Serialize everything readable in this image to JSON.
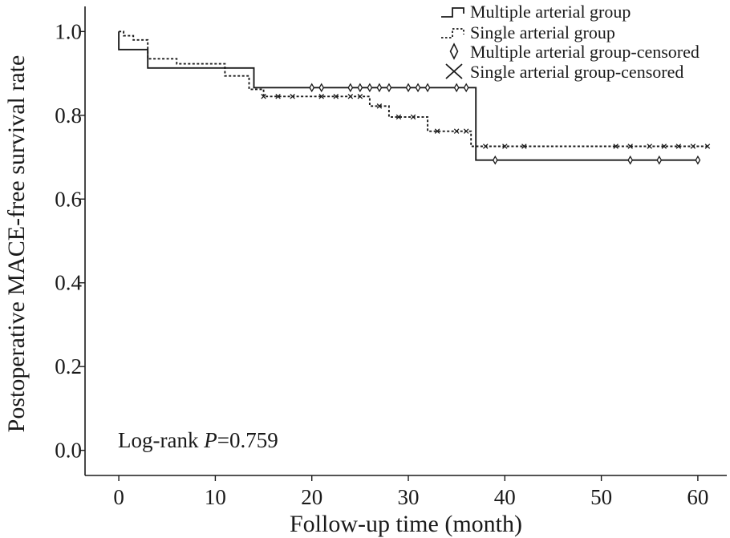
{
  "chart_data": {
    "type": "line",
    "xlabel": "Follow-up time (month)",
    "ylabel": "Postoperative MACE-free survival rate",
    "xlim": [
      -3.5,
      63
    ],
    "ylim": [
      -0.06,
      1.06
    ],
    "xticks": [
      0,
      10,
      20,
      30,
      40,
      50,
      60
    ],
    "yticks": [
      0.0,
      0.2,
      0.4,
      0.6,
      0.8,
      1.0
    ],
    "xtick_labels": [
      "0",
      "10",
      "20",
      "30",
      "40",
      "50",
      "60"
    ],
    "ytick_labels": [
      "0.0",
      "0.2",
      "0.4",
      "0.6",
      "0.8",
      "1.0"
    ],
    "grid": false,
    "legend_position": "top-right",
    "annotation": {
      "prefix": "Log-rank ",
      "italic": "P",
      "suffix": "=0.759"
    },
    "series": [
      {
        "name": "Multiple arterial group",
        "style": "solid",
        "step_x": [
          0,
          0,
          3,
          3,
          14,
          14,
          37,
          37,
          60
        ],
        "step_y": [
          1.0,
          0.957,
          0.957,
          0.913,
          0.913,
          0.866,
          0.866,
          0.693,
          0.693
        ],
        "censored_name": "Multiple arterial group-censored",
        "censored_marker": "diamond",
        "censored_x": [
          20,
          21,
          24,
          25,
          26,
          27,
          28,
          30,
          31,
          32,
          35,
          36,
          39,
          53,
          56,
          60
        ],
        "censored_y": [
          0.866,
          0.866,
          0.866,
          0.866,
          0.866,
          0.866,
          0.866,
          0.866,
          0.866,
          0.866,
          0.866,
          0.866,
          0.693,
          0.693,
          0.693,
          0.693
        ]
      },
      {
        "name": "Single arterial group",
        "style": "dotted",
        "step_x": [
          0,
          0.5,
          0.5,
          1.5,
          1.5,
          3,
          3,
          6,
          6,
          11,
          11,
          13.5,
          13.5,
          15,
          15,
          26,
          26,
          28,
          28,
          32,
          32,
          36.5,
          36.5,
          61
        ],
        "step_y": [
          1.0,
          1.0,
          0.99,
          0.99,
          0.98,
          0.98,
          0.935,
          0.935,
          0.923,
          0.923,
          0.894,
          0.894,
          0.862,
          0.862,
          0.845,
          0.845,
          0.822,
          0.822,
          0.796,
          0.796,
          0.762,
          0.762,
          0.726,
          0.726
        ],
        "censored_name": "Single arterial group-censored",
        "censored_marker": "x",
        "censored_x": [
          15,
          16.5,
          18,
          21,
          22.5,
          24,
          25,
          27,
          29,
          30.5,
          33,
          35,
          36,
          38,
          40,
          42,
          51.5,
          53,
          55,
          56.5,
          58,
          59.5,
          61
        ],
        "censored_y": [
          0.845,
          0.845,
          0.845,
          0.845,
          0.845,
          0.845,
          0.845,
          0.822,
          0.796,
          0.796,
          0.762,
          0.762,
          0.762,
          0.726,
          0.726,
          0.726,
          0.726,
          0.726,
          0.726,
          0.726,
          0.726,
          0.726,
          0.726
        ]
      }
    ]
  },
  "colors": {
    "line": "#1a1a1a",
    "background": "#ffffff"
  }
}
